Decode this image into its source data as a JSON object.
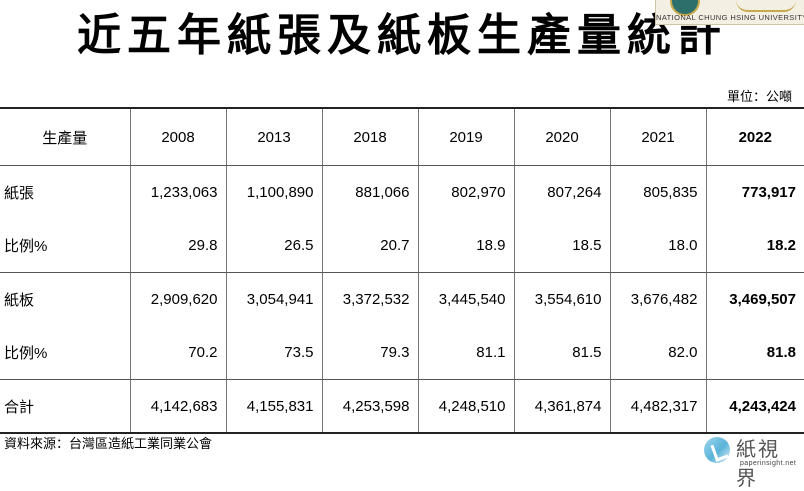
{
  "title": "近五年紙張及紙板生產量統計",
  "unit": "單位：公噸",
  "logo_top_text": "NATIONAL CHUNG HSING UNIVERSITY",
  "table": {
    "header": [
      "生產量",
      "2008",
      "2013",
      "2018",
      "2019",
      "2020",
      "2021",
      "2022"
    ],
    "rows": [
      {
        "label": "紙張",
        "values": [
          "1,233,063",
          "1,100,890",
          "881,066",
          "802,970",
          "807,264",
          "805,835",
          "773,917"
        ]
      },
      {
        "label": "比例%",
        "values": [
          "29.8",
          "26.5",
          "20.7",
          "18.9",
          "18.5",
          "18.0",
          "18.2"
        ]
      },
      {
        "label": "紙板",
        "values": [
          "2,909,620",
          "3,054,941",
          "3,372,532",
          "3,445,540",
          "3,554,610",
          "3,676,482",
          "3,469,507"
        ]
      },
      {
        "label": "比例%",
        "values": [
          "70.2",
          "73.5",
          "79.3",
          "81.1",
          "81.5",
          "82.0",
          "81.8"
        ]
      },
      {
        "label": "合計",
        "values": [
          "4,142,683",
          "4,155,831",
          "4,253,598",
          "4,248,510",
          "4,361,874",
          "4,482,317",
          "4,243,424"
        ]
      }
    ]
  },
  "source": "資料來源：台灣區造紙工業同業公會",
  "watermark": {
    "brand": "紙視界",
    "site": "paperinsight.net"
  },
  "colors": {
    "rule": "#222222",
    "watermark_blue": "#5ab3d8"
  }
}
